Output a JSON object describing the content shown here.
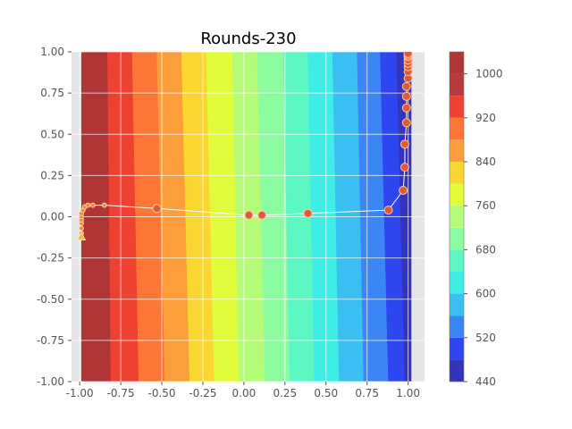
{
  "chart_data": {
    "type": "contour",
    "title": "Rounds-230",
    "xlabel": "",
    "ylabel": "",
    "xlim": [
      -1.05,
      1.1
    ],
    "ylim": [
      -1.0,
      1.0
    ],
    "grid": true,
    "x_ticks": [
      "-1.00",
      "-0.75",
      "-0.50",
      "-0.25",
      "0.00",
      "0.25",
      "0.50",
      "0.75",
      "1.00"
    ],
    "x_tick_values": [
      -1.0,
      -0.75,
      -0.5,
      -0.25,
      0.0,
      0.25,
      0.5,
      0.75,
      1.0
    ],
    "y_ticks": [
      "-1.00",
      "-0.75",
      "-0.50",
      "-0.25",
      "0.00",
      "0.25",
      "0.50",
      "0.75",
      "1.00"
    ],
    "y_tick_values": [
      -1.0,
      -0.75,
      -0.5,
      -0.25,
      0.0,
      0.25,
      0.5,
      0.75,
      1.0
    ],
    "colorbar": {
      "levels": [
        440,
        480,
        520,
        560,
        600,
        640,
        680,
        720,
        760,
        800,
        840,
        880,
        920,
        960,
        1000,
        1040
      ],
      "colors": [
        "#3333bb",
        "#2e46f0",
        "#3b85f5",
        "#3bbef2",
        "#3eeee6",
        "#5cf7c2",
        "#8cfca0",
        "#b6fb78",
        "#e2fb3a",
        "#f9d630",
        "#fc9e39",
        "#fd7636",
        "#ef4132",
        "#b83a3a",
        "#b03535"
      ],
      "tick_labels": [
        "440",
        "520",
        "600",
        "680",
        "760",
        "840",
        "920",
        "1000"
      ],
      "tick_values": [
        440,
        520,
        600,
        680,
        760,
        840,
        920,
        1000
      ]
    },
    "bands": [
      {
        "color": "#b03535",
        "x_top": -0.97,
        "x_bottom": -0.97
      },
      {
        "color": "#ef4132",
        "x_top": -0.83,
        "x_bottom": -0.81
      },
      {
        "color": "#fd7636",
        "x_top": -0.68,
        "x_bottom": -0.64
      },
      {
        "color": "#fc9e39",
        "x_top": -0.53,
        "x_bottom": -0.48
      },
      {
        "color": "#f9d630",
        "x_top": -0.38,
        "x_bottom": -0.33
      },
      {
        "color": "#e2fb3a",
        "x_top": -0.23,
        "x_bottom": -0.18
      },
      {
        "color": "#b6fb78",
        "x_top": -0.07,
        "x_bottom": -0.03
      },
      {
        "color": "#8cfca0",
        "x_top": 0.08,
        "x_bottom": 0.13
      },
      {
        "color": "#5cf7c2",
        "x_top": 0.24,
        "x_bottom": 0.28
      },
      {
        "color": "#3eeee6",
        "x_top": 0.39,
        "x_bottom": 0.43
      },
      {
        "color": "#3bbef2",
        "x_top": 0.54,
        "x_bottom": 0.58
      },
      {
        "color": "#3b85f5",
        "x_top": 0.69,
        "x_bottom": 0.73
      },
      {
        "color": "#2e46f0",
        "x_top": 0.83,
        "x_bottom": 0.88
      },
      {
        "color": "#3333bb",
        "x_top": 0.93,
        "x_bottom": 0.98
      }
    ],
    "path": [
      [
        -0.99,
        -0.12
      ],
      [
        -0.99,
        -0.05
      ],
      [
        -0.99,
        0.0
      ],
      [
        -0.98,
        0.04
      ],
      [
        -0.97,
        0.07
      ],
      [
        -0.85,
        0.07
      ],
      [
        -0.53,
        0.05
      ],
      [
        0.03,
        0.01
      ],
      [
        0.11,
        0.01
      ],
      [
        0.39,
        0.02
      ],
      [
        0.88,
        0.04
      ],
      [
        0.97,
        0.16
      ],
      [
        0.98,
        0.3
      ],
      [
        0.98,
        0.44
      ],
      [
        0.99,
        0.57
      ],
      [
        0.99,
        0.66
      ],
      [
        0.99,
        0.73
      ],
      [
        0.99,
        0.79
      ],
      [
        1.0,
        0.84
      ],
      [
        1.0,
        0.88
      ],
      [
        1.0,
        0.91
      ],
      [
        1.0,
        0.93
      ],
      [
        1.0,
        0.95
      ],
      [
        1.0,
        0.97
      ],
      [
        1.0,
        0.98
      ],
      [
        1.0,
        0.99
      ]
    ],
    "large_markers": [
      [
        -0.53,
        0.05
      ],
      [
        0.03,
        0.01
      ],
      [
        0.11,
        0.01
      ],
      [
        0.39,
        0.02
      ],
      [
        0.88,
        0.04
      ],
      [
        0.97,
        0.16
      ],
      [
        0.98,
        0.3
      ],
      [
        0.98,
        0.44
      ],
      [
        0.99,
        0.57
      ],
      [
        0.99,
        0.66
      ],
      [
        0.99,
        0.73
      ],
      [
        0.99,
        0.79
      ],
      [
        1.0,
        0.84
      ],
      [
        1.0,
        0.88
      ],
      [
        1.0,
        0.91
      ],
      [
        1.0,
        0.93
      ],
      [
        1.0,
        0.95
      ],
      [
        1.0,
        0.97
      ],
      [
        1.0,
        0.98
      ],
      [
        1.0,
        0.99
      ]
    ],
    "small_markers": [
      [
        -0.99,
        -0.1
      ],
      [
        -0.99,
        -0.07
      ],
      [
        -0.99,
        -0.04
      ],
      [
        -0.99,
        -0.02
      ],
      [
        -0.99,
        0.0
      ],
      [
        -0.99,
        0.02
      ],
      [
        -0.98,
        0.04
      ],
      [
        -0.97,
        0.06
      ],
      [
        -0.95,
        0.07
      ],
      [
        -0.92,
        0.07
      ],
      [
        -0.85,
        0.07
      ]
    ],
    "start_marker": [
      -0.99,
      -0.12
    ]
  }
}
